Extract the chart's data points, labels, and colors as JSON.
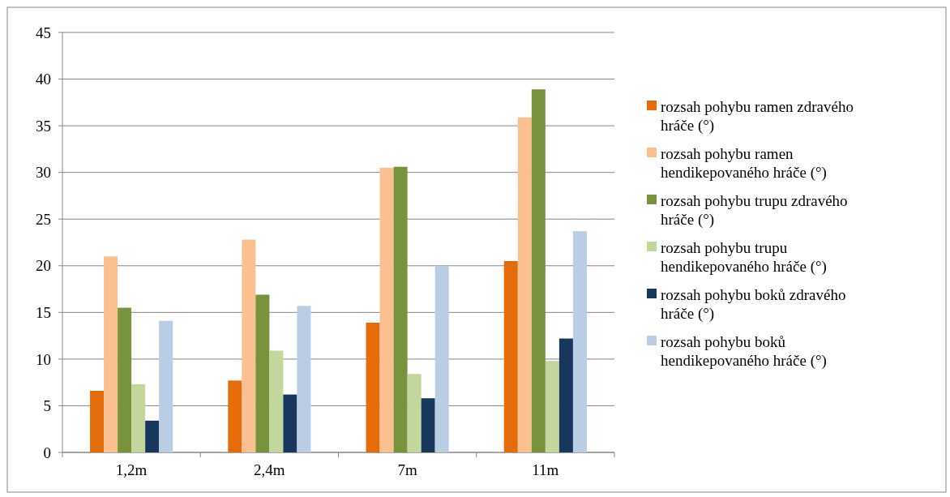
{
  "chart_data": {
    "type": "bar",
    "categories": [
      "1,2m",
      "2,4m",
      "7m",
      "11m"
    ],
    "series": [
      {
        "name": "rozsah pohybu ramen zdravého hráče (°)",
        "color": "#e46c0a",
        "values": [
          6.6,
          7.7,
          13.9,
          20.5
        ]
      },
      {
        "name": "rozsah pohybu ramen hendikepovaného hráče (°)",
        "color": "#fac090",
        "values": [
          21.0,
          22.8,
          30.5,
          35.9
        ]
      },
      {
        "name": "rozsah pohybu trupu zdravého hráče (°)",
        "color": "#77933c",
        "values": [
          15.5,
          16.9,
          30.6,
          38.9
        ]
      },
      {
        "name": "rozsah pohybu trupu hendikepovaného hráče (°)",
        "color": "#c3d69b",
        "values": [
          7.3,
          10.9,
          8.4,
          9.8
        ]
      },
      {
        "name": "rozsah pohybu boků zdravého hráče (°)",
        "color": "#17375e",
        "values": [
          3.4,
          6.2,
          5.8,
          12.2
        ]
      },
      {
        "name": "rozsah pohybu boků hendikepovaného hráče (°)",
        "color": "#b9cde5",
        "values": [
          14.1,
          15.7,
          20.0,
          23.7
        ]
      }
    ],
    "ylim": [
      0,
      45
    ],
    "yticks": [
      0,
      5,
      10,
      15,
      20,
      25,
      30,
      35,
      40,
      45
    ],
    "grid": "y",
    "legend": "right"
  }
}
